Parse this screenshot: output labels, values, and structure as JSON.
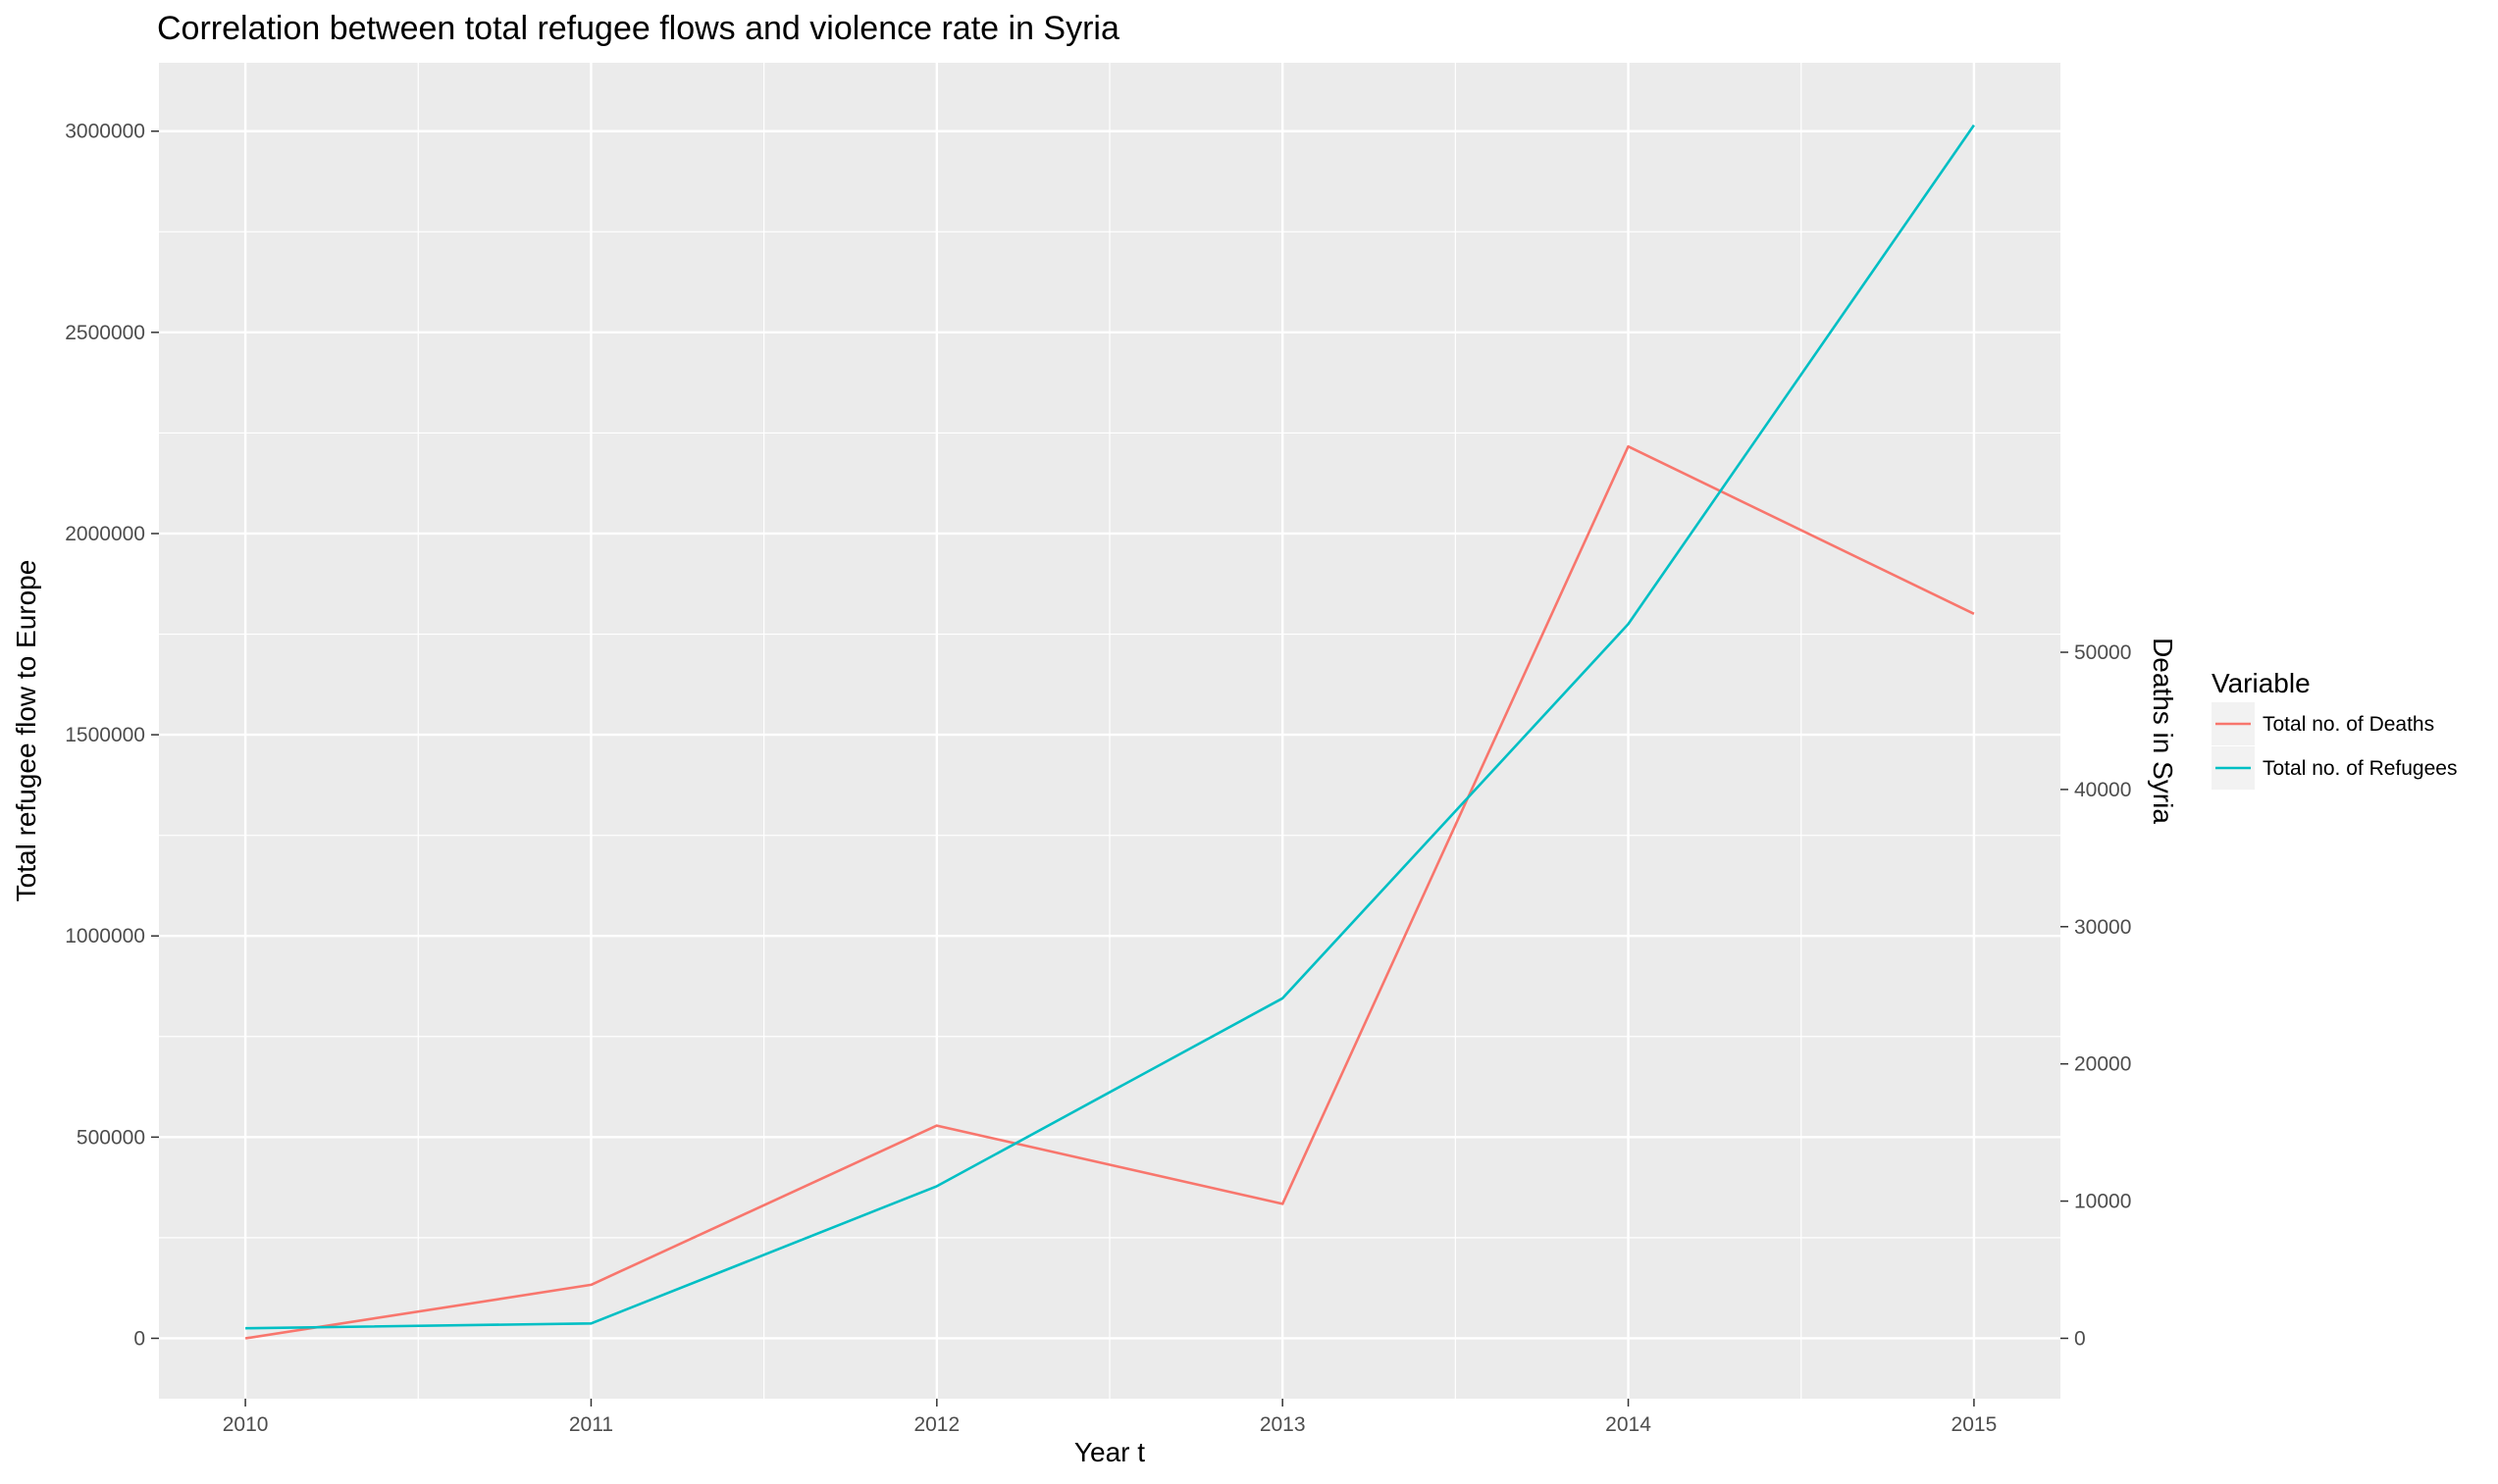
{
  "chart_data": {
    "type": "line",
    "title": "Correlation between total refugee flows and violence rate in Syria",
    "xlabel": "Year t",
    "ylabel": "Total refugee flow to Europe",
    "y2label": "Deaths in Syria",
    "x": [
      2010,
      2011,
      2012,
      2013,
      2014,
      2015
    ],
    "x_ticks": [
      "2010",
      "2011",
      "2012",
      "2013",
      "2014",
      "2015"
    ],
    "xlim": [
      2009.75,
      2015.25
    ],
    "ylim": [
      -150000,
      3170000
    ],
    "y_ticks": [
      0,
      500000,
      1000000,
      1500000,
      2000000,
      2500000,
      3000000
    ],
    "y_tick_labels": [
      "0",
      "500000",
      "1000000",
      "1500000",
      "2000000",
      "2500000",
      "3000000"
    ],
    "y2_ticks": [
      0,
      10000,
      20000,
      30000,
      40000,
      50000
    ],
    "y2_tick_labels": [
      "0",
      "10000",
      "20000",
      "30000",
      "40000",
      "50000"
    ],
    "y2_scale": 34.1,
    "grid": true,
    "legend_position": "right",
    "legend_title": "Variable",
    "series": [
      {
        "name": "Total no. of Deaths",
        "color": "#F8766D",
        "axis": "right",
        "values": [
          0,
          3900,
          15500,
          9800,
          65000,
          52800
        ]
      },
      {
        "name": "Total no. of Refugees",
        "color": "#00BFC4",
        "axis": "left",
        "values": [
          25000,
          37000,
          378000,
          845000,
          1775000,
          3015000
        ]
      }
    ]
  }
}
